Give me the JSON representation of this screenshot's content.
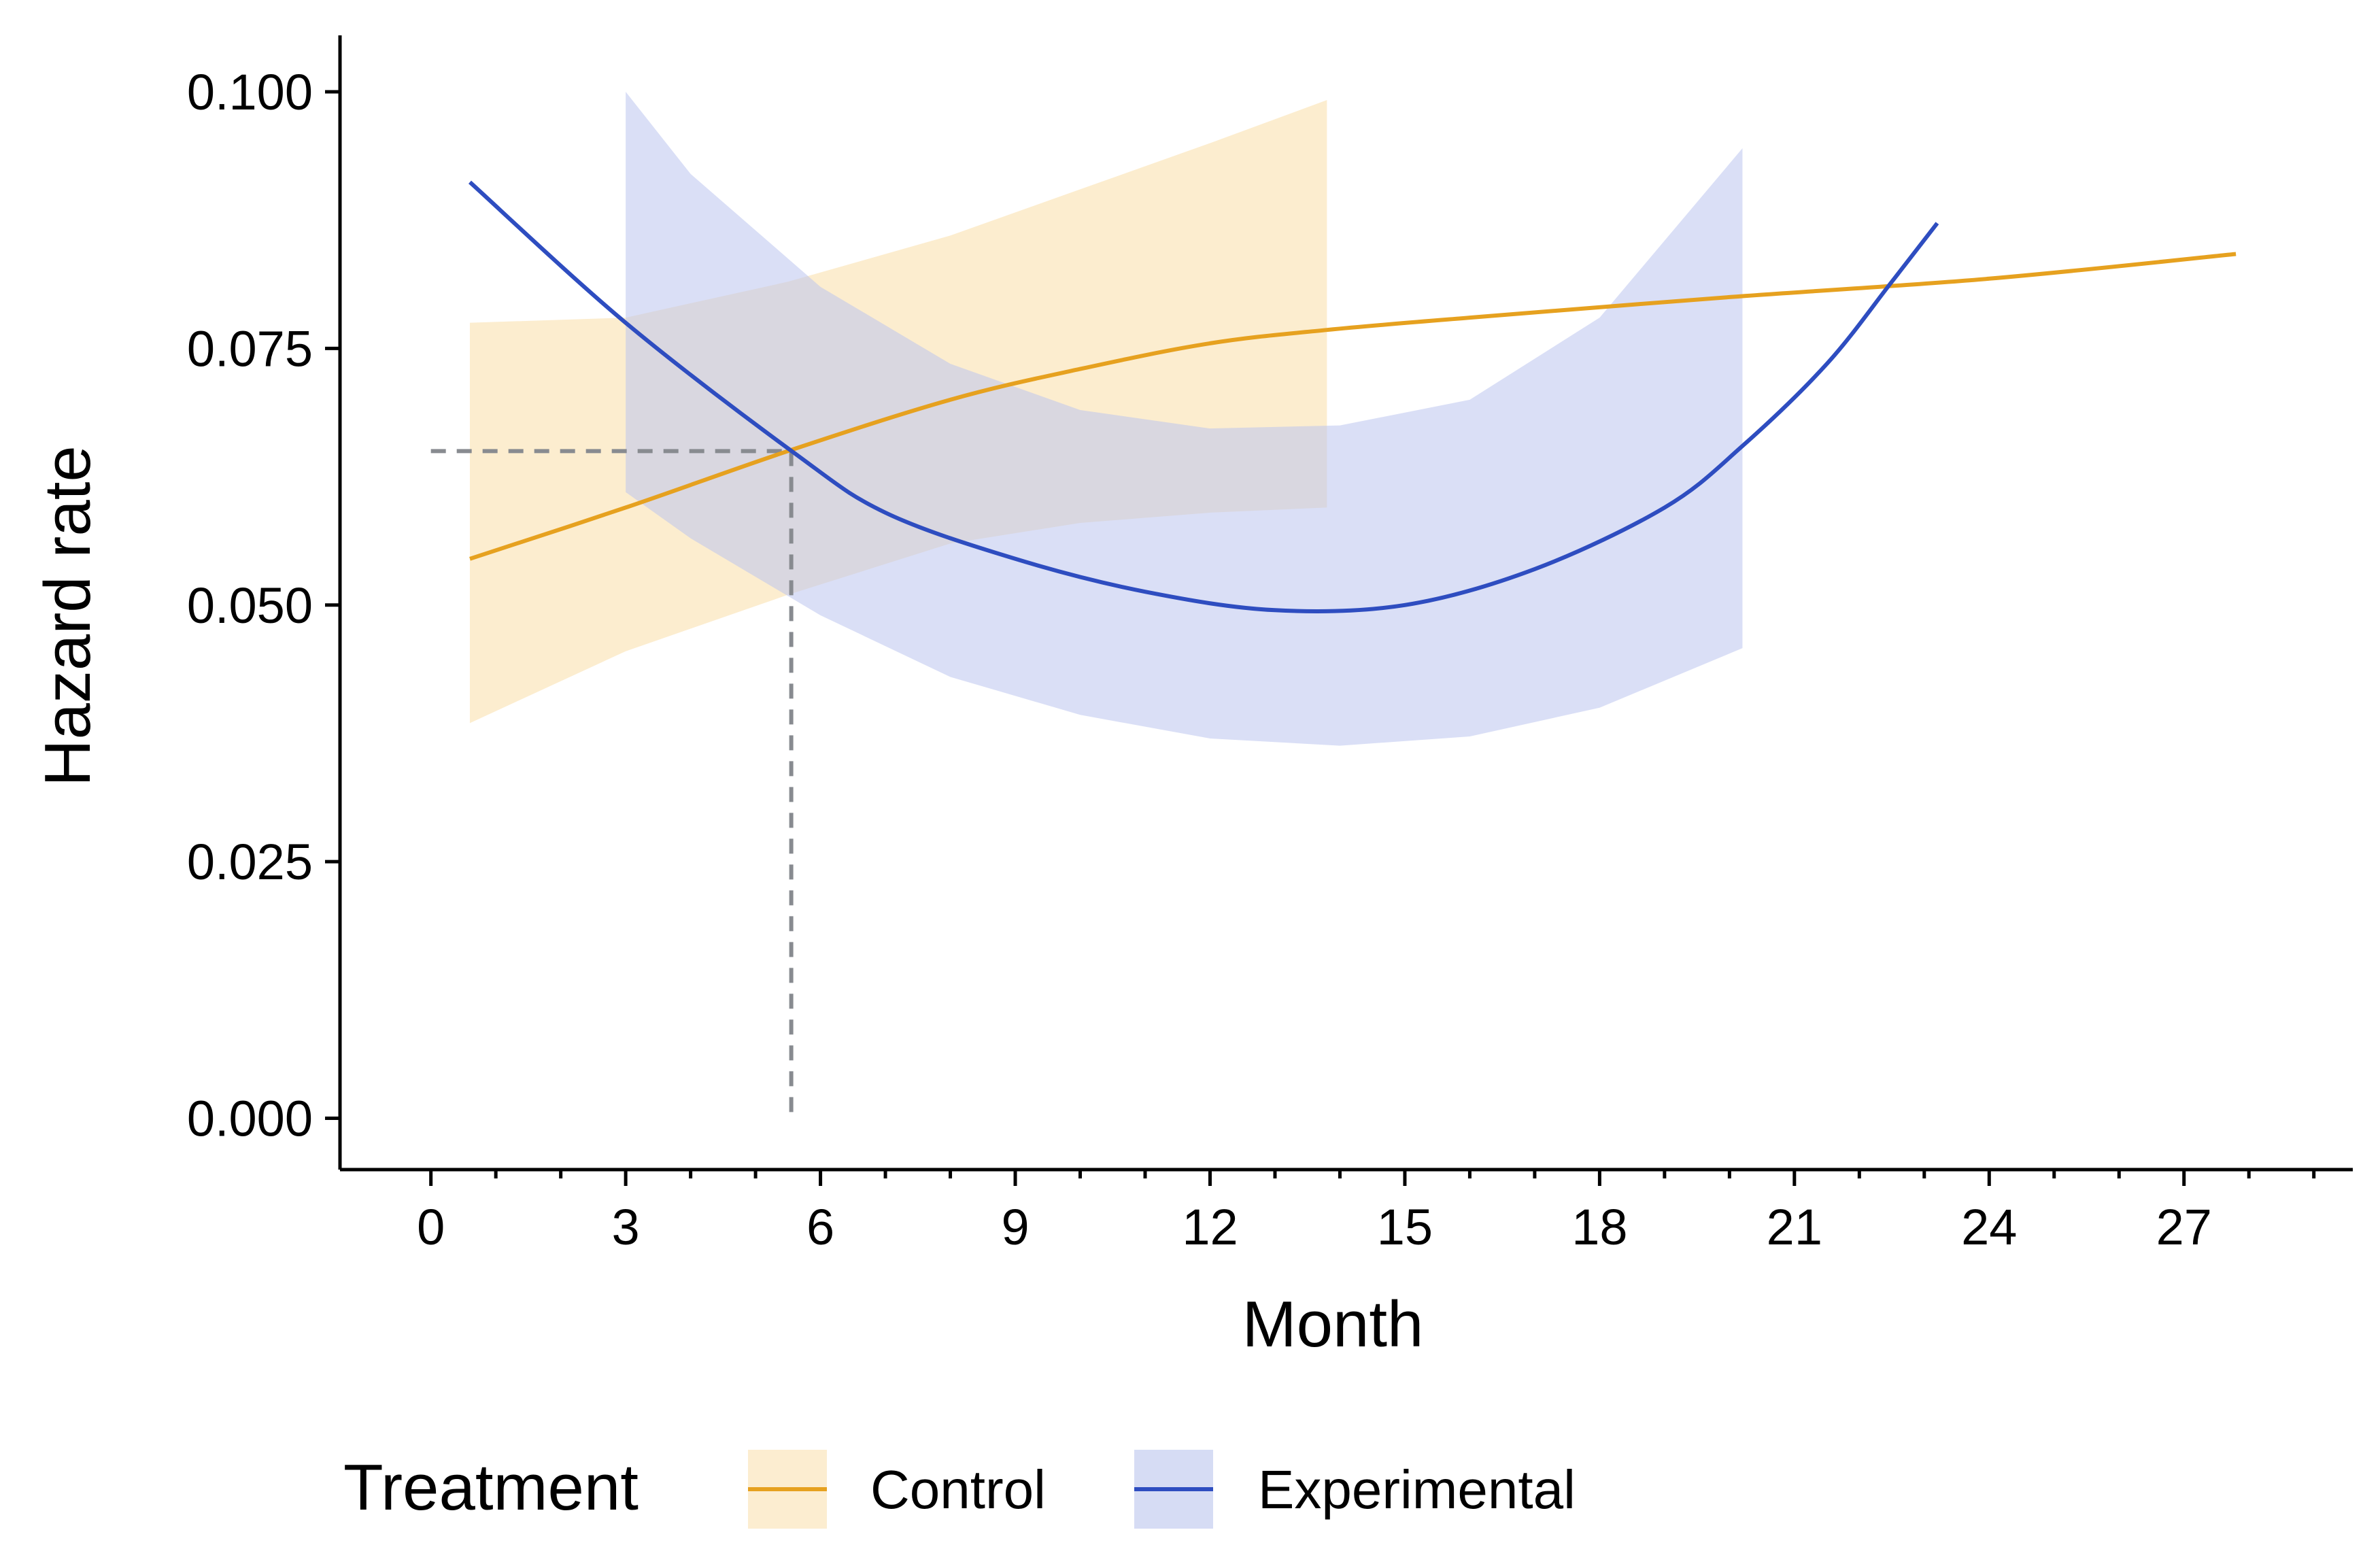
{
  "chart_data": {
    "type": "line",
    "xlabel": "Month",
    "ylabel": "Hazard rate",
    "xlim": [
      -1.4,
      29.6
    ],
    "ylim": [
      -0.005,
      0.1055
    ],
    "x_ticks": [
      0,
      3,
      6,
      9,
      12,
      15,
      18,
      21,
      24,
      27
    ],
    "x_minor_ticks": [
      1,
      2,
      4,
      5,
      7,
      8,
      10,
      11,
      13,
      14,
      16,
      17,
      19,
      20,
      22,
      23,
      25,
      26,
      28,
      29
    ],
    "y_ticks": [
      0.0,
      0.025,
      0.05,
      0.075,
      0.1
    ],
    "y_tick_labels": [
      "0.000",
      "0.025",
      "0.050",
      "0.075",
      "0.100"
    ],
    "grid": false,
    "legend": {
      "title": "Treatment",
      "position": "bottom",
      "entries": [
        {
          "label": "Control",
          "line_color": "#E6A11F",
          "fill_color": "#FCEDD0"
        },
        {
          "label": "Experimental",
          "line_color": "#2E4DC0",
          "fill_color": "#D6DCF4"
        }
      ]
    },
    "series": [
      {
        "name": "Control",
        "color": "#E6A11F",
        "band_color": "#F9DEA8",
        "x": [
          0.6,
          3,
          5.5,
          8,
          10,
          12,
          13.8,
          16,
          20,
          24,
          27.8
        ],
        "y": [
          0.0545,
          0.0595,
          0.065,
          0.07,
          0.073,
          0.0755,
          0.0768,
          0.078,
          0.08,
          0.0818,
          0.0842
        ],
        "band_x": [
          0.6,
          3,
          5.5,
          8,
          10,
          12,
          13.8
        ],
        "band_lower": [
          0.0385,
          0.0455,
          0.051,
          0.056,
          0.058,
          0.059,
          0.0595
        ],
        "band_upper": [
          0.0775,
          0.078,
          0.0815,
          0.086,
          0.0905,
          0.095,
          0.0992
        ]
      },
      {
        "name": "Experimental",
        "color": "#2E4DC0",
        "band_color": "#BCC5EE",
        "x": [
          0.6,
          3,
          5.6,
          7,
          9,
          11,
          13,
          15,
          17,
          19,
          20.2,
          21.5,
          22.5,
          23.2
        ],
        "y": [
          0.0912,
          0.0775,
          0.0648,
          0.059,
          0.0545,
          0.0513,
          0.0495,
          0.05,
          0.0535,
          0.0595,
          0.0655,
          0.0735,
          0.0815,
          0.0872
        ],
        "band_x": [
          3,
          4,
          6,
          8,
          10,
          12,
          14,
          16,
          18,
          20.2
        ],
        "band_lower": [
          0.061,
          0.0565,
          0.049,
          0.043,
          0.0393,
          0.037,
          0.0363,
          0.0372,
          0.04,
          0.0458
        ],
        "band_upper": [
          0.1,
          0.092,
          0.081,
          0.0735,
          0.069,
          0.0672,
          0.0675,
          0.07,
          0.078,
          0.0945
        ]
      }
    ],
    "annotations": [
      {
        "type": "reference-lines",
        "x": 5.55,
        "y": 0.065,
        "style": "dashed",
        "color": "#888B90"
      }
    ]
  }
}
